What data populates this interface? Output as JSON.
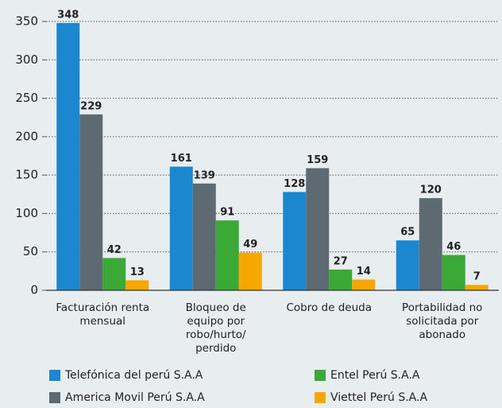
{
  "chart_data": {
    "type": "bar",
    "categories": [
      "Facturación renta mensual",
      "Bloqueo de equipo por robo/hurto/ perdido",
      "Cobro de deuda",
      "Portabilidad no solicitada por abonado"
    ],
    "series": [
      {
        "name": "Telefónica del perú S.A.A",
        "color": "#1a87cf",
        "values": [
          348,
          161,
          128,
          65
        ]
      },
      {
        "name": "America Movil Perú S.A.A",
        "color": "#5e6a72",
        "values": [
          229,
          139,
          159,
          120
        ]
      },
      {
        "name": "Entel Perú S.A.A",
        "color": "#3aa935",
        "values": [
          42,
          91,
          27,
          46
        ]
      },
      {
        "name": "Viettel Perú S.A.A",
        "color": "#f6a800",
        "values": [
          13,
          49,
          14,
          7
        ]
      }
    ],
    "ylim": [
      0,
      350
    ],
    "yticks": [
      0,
      50,
      100,
      150,
      200,
      250,
      300,
      350
    ],
    "grid": true
  }
}
